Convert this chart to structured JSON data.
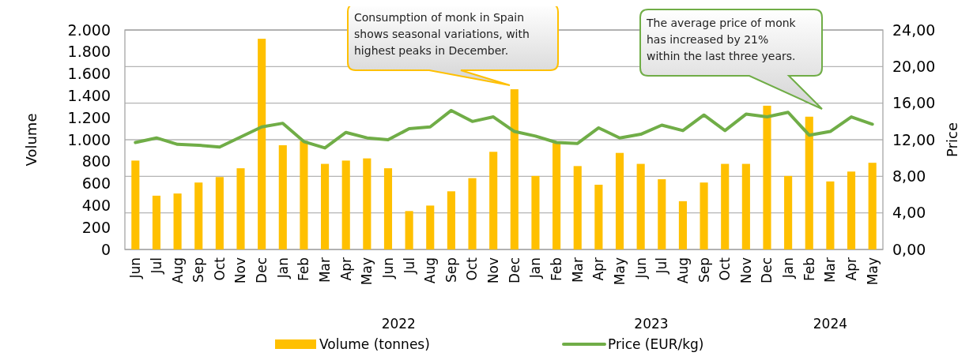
{
  "chart_data": {
    "type": "bar",
    "categories": [
      "Jun",
      "Jul",
      "Aug",
      "Sep",
      "Oct",
      "Nov",
      "Dec",
      "Jan",
      "Feb",
      "Mar",
      "Apr",
      "May",
      "Jun",
      "Jul",
      "Aug",
      "Sep",
      "Oct",
      "Nov",
      "Dec",
      "Jan",
      "Feb",
      "Mar",
      "Apr",
      "May",
      "Jun",
      "Jul",
      "Aug",
      "Sep",
      "Oct",
      "Nov",
      "Dec",
      "Jan",
      "Feb",
      "Mar",
      "Apr",
      "May"
    ],
    "series": [
      {
        "name": "Volume (tonnes)",
        "color": "#ffc000",
        "values": [
          810,
          490,
          510,
          610,
          660,
          740,
          1920,
          950,
          990,
          780,
          810,
          830,
          740,
          350,
          400,
          530,
          650,
          890,
          1460,
          670,
          970,
          760,
          590,
          880,
          780,
          640,
          440,
          610,
          780,
          780,
          1310,
          670,
          1210,
          620,
          710,
          790
        ]
      },
      {
        "name": "Price (EUR/kg)",
        "type": "line",
        "axis": "y2",
        "color": "#70ad47",
        "values": [
          11.7,
          12.2,
          11.5,
          11.4,
          11.2,
          12.3,
          13.4,
          13.8,
          11.8,
          11.1,
          12.8,
          12.2,
          12.0,
          13.2,
          13.4,
          15.2,
          14.0,
          14.5,
          12.9,
          12.4,
          11.7,
          11.6,
          13.3,
          12.2,
          12.6,
          13.6,
          13.0,
          14.7,
          13.0,
          14.8,
          14.5,
          15.0,
          12.5,
          12.9,
          14.5,
          13.7
        ]
      }
    ],
    "ylabel": "Volume",
    "y2label": "Price",
    "ylim": [
      0,
      2000
    ],
    "yticks": [
      0,
      200,
      400,
      600,
      800,
      {
        "value": 1000,
        "label": "1.000"
      },
      {
        "value": 1200,
        "label": "1.200"
      },
      {
        "value": 1400,
        "label": "1.400"
      },
      {
        "value": 1600,
        "label": "1.600"
      },
      {
        "value": 1800,
        "label": "1.800"
      },
      {
        "value": 2000,
        "label": "2.000"
      }
    ],
    "y2lim": [
      0,
      24
    ],
    "y2ticks": [
      {
        "value": 0,
        "label": "0,00"
      },
      {
        "value": 4,
        "label": "4,00"
      },
      {
        "value": 8,
        "label": "8,00"
      },
      {
        "value": 12,
        "label": "12,00"
      },
      {
        "value": 16,
        "label": "16,00"
      },
      {
        "value": 20,
        "label": "20,00"
      },
      {
        "value": 24,
        "label": "24,00"
      }
    ],
    "grid": "y2",
    "legend": "bottom",
    "annotations": [
      "Consumption of monk in Spain shows seasonal variations, with highest peaks in December.",
      "The average price of monk has increased by 21% within the last three years.",
      "2022",
      "2023",
      "2024"
    ]
  }
}
